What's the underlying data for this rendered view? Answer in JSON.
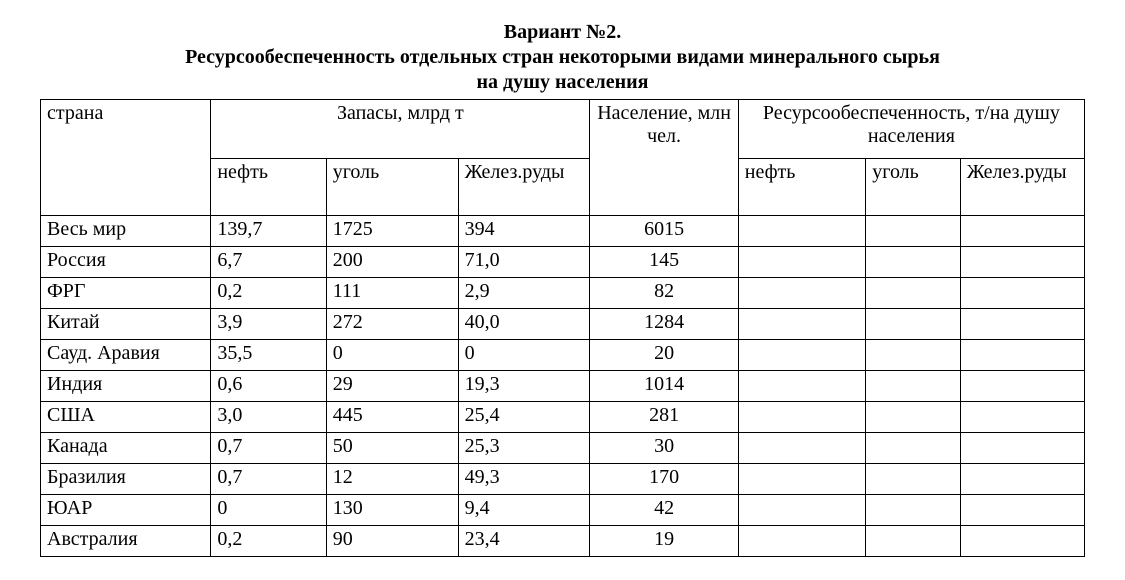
{
  "title": {
    "line1": "Вариант №2.",
    "line2": "Ресурсообеспеченность отдельных стран некоторыми видами минерального сырья",
    "line3": "на душу населения"
  },
  "table": {
    "header": {
      "country": "страна",
      "reserves_group": "Запасы, млрд т",
      "population": "Население, млн чел.",
      "supply_group": "Ресурсообеспеченность, т/на душу населения",
      "sub": {
        "oil": "нефть",
        "coal": "уголь",
        "iron": "Желез.руды",
        "r_oil": "нефть",
        "r_coal": "уголь",
        "r_iron": "Желез.руды"
      }
    },
    "rows": [
      {
        "country": "Весь мир",
        "oil": "139,7",
        "coal": "1725",
        "iron": "394",
        "pop": "6015",
        "r_oil": "",
        "r_coal": "",
        "r_iron": ""
      },
      {
        "country": "Россия",
        "oil": "6,7",
        "coal": "200",
        "iron": "71,0",
        "pop": "145",
        "r_oil": "",
        "r_coal": "",
        "r_iron": ""
      },
      {
        "country": "ФРГ",
        "oil": "0,2",
        "coal": "111",
        "iron": "2,9",
        "pop": "82",
        "r_oil": "",
        "r_coal": "",
        "r_iron": ""
      },
      {
        "country": "Китай",
        "oil": "3,9",
        "coal": "272",
        "iron": "40,0",
        "pop": "1284",
        "r_oil": "",
        "r_coal": "",
        "r_iron": ""
      },
      {
        "country": "Сауд. Аравия",
        "oil": "35,5",
        "coal": "0",
        "iron": "0",
        "pop": "20",
        "r_oil": "",
        "r_coal": "",
        "r_iron": ""
      },
      {
        "country": "Индия",
        "oil": "0,6",
        "coal": "29",
        "iron": "19,3",
        "pop": "1014",
        "r_oil": "",
        "r_coal": "",
        "r_iron": ""
      },
      {
        "country": "США",
        "oil": "3,0",
        "coal": "445",
        "iron": "25,4",
        "pop": "281",
        "r_oil": "",
        "r_coal": "",
        "r_iron": ""
      },
      {
        "country": "Канада",
        "oil": "0,7",
        "coal": "50",
        "iron": "25,3",
        "pop": "30",
        "r_oil": "",
        "r_coal": "",
        "r_iron": ""
      },
      {
        "country": "Бразилия",
        "oil": "0,7",
        "coal": "12",
        "iron": "49,3",
        "pop": "170",
        "r_oil": "",
        "r_coal": "",
        "r_iron": ""
      },
      {
        "country": "ЮАР",
        "oil": "0",
        "coal": "130",
        "iron": "9,4",
        "pop": "42",
        "r_oil": "",
        "r_coal": "",
        "r_iron": ""
      },
      {
        "country": "Австралия",
        "oil": "0,2",
        "coal": "90",
        "iron": "23,4",
        "pop": "19",
        "r_oil": "",
        "r_coal": "",
        "r_iron": ""
      }
    ]
  },
  "style": {
    "font_family": "Times New Roman",
    "font_size_pt": 15,
    "text_color": "#000000",
    "background_color": "#ffffff",
    "border_color": "#000000"
  }
}
